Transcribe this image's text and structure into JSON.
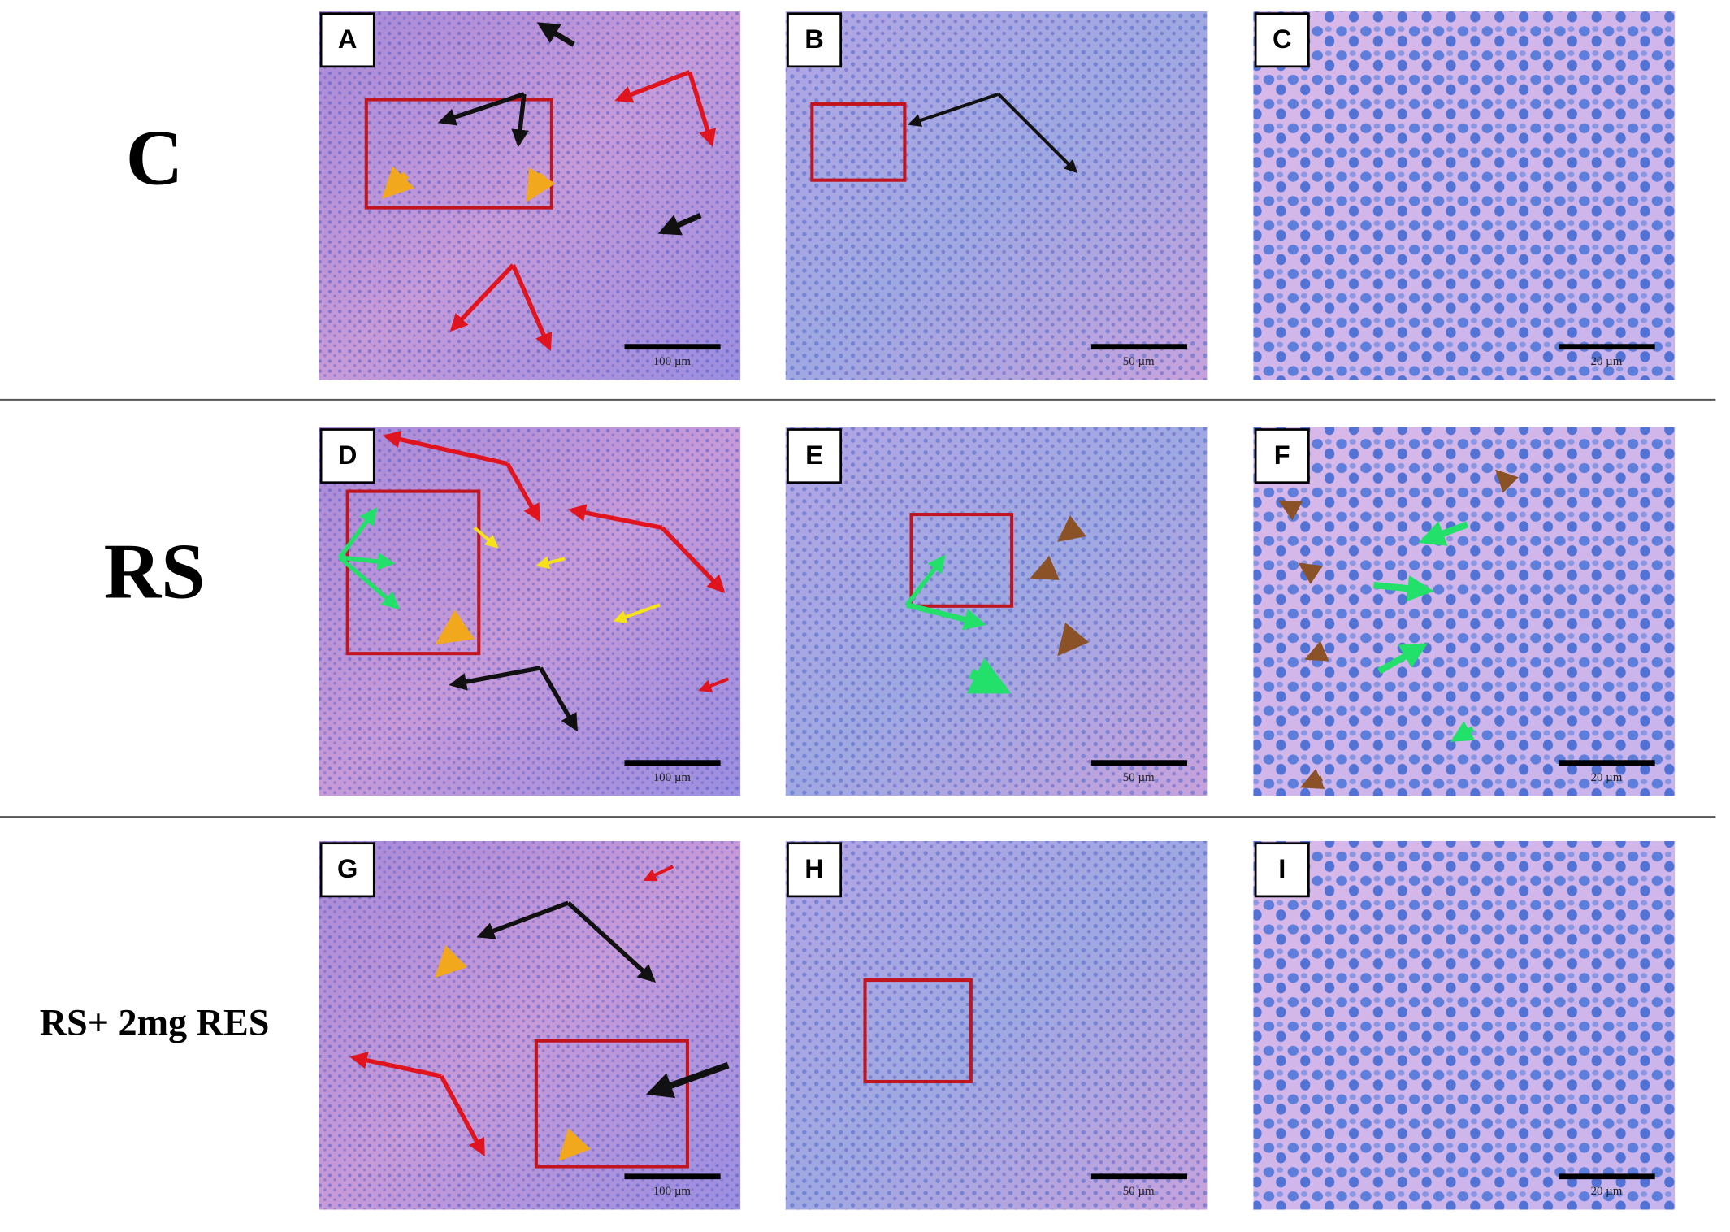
{
  "rows": [
    {
      "label": "C",
      "panels": [
        {
          "letter": "A",
          "scale": "100 µm"
        },
        {
          "letter": "B",
          "scale": "50 µm"
        },
        {
          "letter": "C",
          "scale": "20 µm"
        }
      ]
    },
    {
      "label": "RS",
      "panels": [
        {
          "letter": "D",
          "scale": "100 µm"
        },
        {
          "letter": "E",
          "scale": "50 µm"
        },
        {
          "letter": "F",
          "scale": "20 µm"
        }
      ]
    },
    {
      "label": "RS+ 2mg RES",
      "panels": [
        {
          "letter": "G",
          "scale": "100 µm"
        },
        {
          "letter": "H",
          "scale": "50 µm"
        },
        {
          "letter": "I",
          "scale": "20 µm"
        }
      ]
    }
  ]
}
